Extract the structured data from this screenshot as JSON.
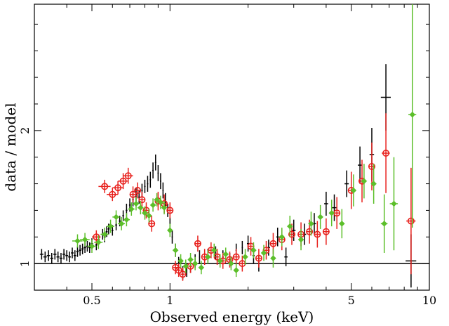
{
  "chart_data": {
    "type": "scatter",
    "title": "",
    "xlabel": "Observed energy (keV)",
    "ylabel": "data / model",
    "x_scale": "log",
    "xlim": [
      0.3,
      10
    ],
    "ylim": [
      0.8,
      2.95
    ],
    "x_ticks": [
      {
        "value": 0.5,
        "label": "0.5"
      },
      {
        "value": 1,
        "label": "1"
      },
      {
        "value": 5,
        "label": "5"
      },
      {
        "value": 10,
        "label": "10"
      }
    ],
    "x_minor_ticks": [
      0.4,
      0.6,
      0.7,
      0.8,
      0.9,
      2,
      3,
      4,
      6,
      7,
      8,
      9
    ],
    "y_ticks": [
      {
        "value": 1,
        "label": "1"
      },
      {
        "value": 2,
        "label": "2"
      }
    ],
    "y_minor_ticks": [
      1.2,
      1.4,
      1.6,
      1.8,
      2.2,
      2.4,
      2.6,
      2.8
    ],
    "reference_line": 1,
    "grid": false,
    "colors": {
      "series1": "#000000",
      "series2": "#e8211d",
      "series3": "#5cbf2a"
    },
    "series": [
      {
        "marker": "cross",
        "color": "#000000",
        "points": [
          [
            0.32,
            1.07,
            0.04,
            0.005
          ],
          [
            0.33,
            1.05,
            0.04,
            0.005
          ],
          [
            0.34,
            1.06,
            0.04,
            0.005
          ],
          [
            0.35,
            1.04,
            0.04,
            0.005
          ],
          [
            0.36,
            1.07,
            0.04,
            0.005
          ],
          [
            0.37,
            1.05,
            0.04,
            0.005
          ],
          [
            0.38,
            1.04,
            0.04,
            0.005
          ],
          [
            0.39,
            1.07,
            0.04,
            0.005
          ],
          [
            0.4,
            1.06,
            0.04,
            0.005
          ],
          [
            0.41,
            1.05,
            0.04,
            0.005
          ],
          [
            0.42,
            1.08,
            0.04,
            0.005
          ],
          [
            0.43,
            1.06,
            0.04,
            0.005
          ],
          [
            0.44,
            1.09,
            0.04,
            0.005
          ],
          [
            0.45,
            1.1,
            0.04,
            0.005
          ],
          [
            0.46,
            1.11,
            0.04,
            0.005
          ],
          [
            0.47,
            1.12,
            0.04,
            0.005
          ],
          [
            0.48,
            1.13,
            0.04,
            0.005
          ],
          [
            0.49,
            1.12,
            0.04,
            0.005
          ],
          [
            0.5,
            1.15,
            0.04,
            0.005
          ],
          [
            0.52,
            1.14,
            0.04,
            0.005
          ],
          [
            0.53,
            1.18,
            0.04,
            0.005
          ],
          [
            0.55,
            1.22,
            0.04,
            0.005
          ],
          [
            0.56,
            1.2,
            0.04,
            0.005
          ],
          [
            0.57,
            1.24,
            0.04,
            0.005
          ],
          [
            0.58,
            1.26,
            0.04,
            0.005
          ],
          [
            0.6,
            1.25,
            0.04,
            0.005
          ],
          [
            0.62,
            1.29,
            0.04,
            0.005
          ],
          [
            0.64,
            1.32,
            0.04,
            0.005
          ],
          [
            0.66,
            1.36,
            0.04,
            0.005
          ],
          [
            0.68,
            1.4,
            0.05,
            0.005
          ],
          [
            0.7,
            1.44,
            0.05,
            0.005
          ],
          [
            0.72,
            1.48,
            0.05,
            0.005
          ],
          [
            0.74,
            1.52,
            0.05,
            0.005
          ],
          [
            0.76,
            1.5,
            0.05,
            0.005
          ],
          [
            0.78,
            1.55,
            0.05,
            0.005
          ],
          [
            0.8,
            1.58,
            0.05,
            0.005
          ],
          [
            0.82,
            1.6,
            0.06,
            0.005
          ],
          [
            0.84,
            1.63,
            0.06,
            0.005
          ],
          [
            0.86,
            1.7,
            0.06,
            0.005
          ],
          [
            0.88,
            1.76,
            0.06,
            0.005
          ],
          [
            0.9,
            1.68,
            0.06,
            0.005
          ],
          [
            0.92,
            1.62,
            0.06,
            0.005
          ],
          [
            0.94,
            1.55,
            0.06,
            0.005
          ],
          [
            0.96,
            1.48,
            0.05,
            0.005
          ],
          [
            0.98,
            1.4,
            0.05,
            0.005
          ],
          [
            1.0,
            1.3,
            0.05,
            0.005
          ],
          [
            1.02,
            1.2,
            0.05,
            0.005
          ],
          [
            1.05,
            1.1,
            0.05,
            0.005
          ],
          [
            1.08,
            1.0,
            0.05,
            0.005
          ],
          [
            1.12,
            0.93,
            0.05,
            0.005
          ],
          [
            1.16,
            0.95,
            0.05,
            0.005
          ],
          [
            1.2,
            0.98,
            0.05,
            0.005
          ],
          [
            1.25,
            1.02,
            0.05,
            0.005
          ],
          [
            1.3,
            1.05,
            0.05,
            0.005
          ],
          [
            1.4,
            1.06,
            0.05,
            0.005
          ],
          [
            1.5,
            1.08,
            0.05,
            0.005
          ],
          [
            1.6,
            1.05,
            0.05,
            0.01
          ],
          [
            1.7,
            1.03,
            0.05,
            0.01
          ],
          [
            1.8,
            1.1,
            0.05,
            0.01
          ],
          [
            1.9,
            1.12,
            0.05,
            0.01
          ],
          [
            2.0,
            1.15,
            0.06,
            0.02
          ],
          [
            2.1,
            1.06,
            0.06,
            0.02
          ],
          [
            2.2,
            1.0,
            0.06,
            0.02
          ],
          [
            2.4,
            1.12,
            0.06,
            0.03
          ],
          [
            2.6,
            1.2,
            0.07,
            0.03
          ],
          [
            2.8,
            1.05,
            0.07,
            0.04
          ],
          [
            3.0,
            1.25,
            0.08,
            0.05
          ],
          [
            3.3,
            1.22,
            0.08,
            0.05
          ],
          [
            3.6,
            1.3,
            0.08,
            0.06
          ],
          [
            4.0,
            1.45,
            0.09,
            0.07
          ],
          [
            4.3,
            1.42,
            0.1,
            0.08
          ],
          [
            4.8,
            1.6,
            0.1,
            0.09
          ],
          [
            5.4,
            1.74,
            0.14,
            0.1
          ],
          [
            6.0,
            1.82,
            0.2,
            0.12
          ],
          [
            6.8,
            2.25,
            0.25,
            0.3
          ],
          [
            8.5,
            1.02,
            0.2,
            0.4
          ]
        ]
      },
      {
        "marker": "circle",
        "color": "#e8211d",
        "points": [
          [
            0.52,
            1.2,
            0.05,
            0.02
          ],
          [
            0.56,
            1.58,
            0.05,
            0.03
          ],
          [
            0.6,
            1.52,
            0.05,
            0.03
          ],
          [
            0.63,
            1.57,
            0.05,
            0.03
          ],
          [
            0.66,
            1.62,
            0.06,
            0.03
          ],
          [
            0.69,
            1.66,
            0.06,
            0.03
          ],
          [
            0.72,
            1.52,
            0.06,
            0.02
          ],
          [
            0.75,
            1.55,
            0.06,
            0.02
          ],
          [
            0.78,
            1.48,
            0.06,
            0.02
          ],
          [
            0.81,
            1.4,
            0.06,
            0.02
          ],
          [
            0.85,
            1.3,
            0.06,
            0.02
          ],
          [
            0.9,
            1.47,
            0.07,
            0.02
          ],
          [
            0.95,
            1.45,
            0.07,
            0.02
          ],
          [
            1.0,
            1.4,
            0.06,
            0.02
          ],
          [
            1.05,
            0.97,
            0.05,
            0.02
          ],
          [
            1.08,
            0.95,
            0.05,
            0.02
          ],
          [
            1.12,
            0.92,
            0.05,
            0.02
          ],
          [
            1.2,
            0.98,
            0.05,
            0.02
          ],
          [
            1.28,
            1.15,
            0.06,
            0.03
          ],
          [
            1.36,
            1.05,
            0.06,
            0.03
          ],
          [
            1.44,
            1.1,
            0.06,
            0.03
          ],
          [
            1.52,
            1.05,
            0.06,
            0.03
          ],
          [
            1.6,
            1.02,
            0.06,
            0.03
          ],
          [
            1.7,
            1.03,
            0.06,
            0.03
          ],
          [
            1.8,
            1.05,
            0.06,
            0.04
          ],
          [
            1.9,
            1.0,
            0.06,
            0.04
          ],
          [
            2.05,
            1.13,
            0.07,
            0.05
          ],
          [
            2.2,
            1.04,
            0.07,
            0.05
          ],
          [
            2.35,
            1.1,
            0.07,
            0.05
          ],
          [
            2.5,
            1.15,
            0.08,
            0.06
          ],
          [
            2.7,
            1.18,
            0.08,
            0.07
          ],
          [
            2.95,
            1.22,
            0.08,
            0.08
          ],
          [
            3.2,
            1.22,
            0.09,
            0.08
          ],
          [
            3.45,
            1.24,
            0.09,
            0.09
          ],
          [
            3.7,
            1.22,
            0.1,
            0.1
          ],
          [
            4.0,
            1.24,
            0.1,
            0.11
          ],
          [
            4.4,
            1.38,
            0.12,
            0.12
          ],
          [
            5.0,
            1.55,
            0.14,
            0.14
          ],
          [
            5.5,
            1.62,
            0.16,
            0.16
          ],
          [
            6.0,
            1.73,
            0.18,
            0.18
          ],
          [
            6.8,
            1.83,
            0.3,
            0.24
          ],
          [
            8.5,
            1.32,
            0.4,
            0.35
          ]
        ]
      },
      {
        "marker": "diamond",
        "color": "#5cbf2a",
        "points": [
          [
            0.44,
            1.17,
            0.05,
            0.02
          ],
          [
            0.47,
            1.18,
            0.05,
            0.02
          ],
          [
            0.5,
            1.13,
            0.05,
            0.02
          ],
          [
            0.53,
            1.16,
            0.05,
            0.02
          ],
          [
            0.56,
            1.22,
            0.05,
            0.02
          ],
          [
            0.59,
            1.28,
            0.05,
            0.02
          ],
          [
            0.62,
            1.35,
            0.05,
            0.02
          ],
          [
            0.65,
            1.3,
            0.05,
            0.02
          ],
          [
            0.68,
            1.33,
            0.05,
            0.02
          ],
          [
            0.71,
            1.41,
            0.05,
            0.02
          ],
          [
            0.74,
            1.45,
            0.05,
            0.02
          ],
          [
            0.77,
            1.42,
            0.05,
            0.02
          ],
          [
            0.8,
            1.38,
            0.05,
            0.02
          ],
          [
            0.83,
            1.36,
            0.05,
            0.02
          ],
          [
            0.86,
            1.44,
            0.05,
            0.02
          ],
          [
            0.89,
            1.48,
            0.05,
            0.02
          ],
          [
            0.92,
            1.46,
            0.05,
            0.02
          ],
          [
            0.95,
            1.42,
            0.05,
            0.02
          ],
          [
            1.0,
            1.25,
            0.05,
            0.02
          ],
          [
            1.05,
            1.1,
            0.05,
            0.02
          ],
          [
            1.1,
            1.02,
            0.05,
            0.02
          ],
          [
            1.15,
            0.98,
            0.05,
            0.02
          ],
          [
            1.2,
            1.03,
            0.05,
            0.02
          ],
          [
            1.25,
            1.0,
            0.05,
            0.02
          ],
          [
            1.32,
            0.97,
            0.05,
            0.02
          ],
          [
            1.4,
            1.05,
            0.05,
            0.02
          ],
          [
            1.48,
            1.1,
            0.05,
            0.02
          ],
          [
            1.56,
            1.02,
            0.05,
            0.02
          ],
          [
            1.64,
            1.07,
            0.05,
            0.03
          ],
          [
            1.72,
            1.0,
            0.05,
            0.03
          ],
          [
            1.8,
            0.95,
            0.05,
            0.03
          ],
          [
            1.95,
            1.05,
            0.06,
            0.04
          ],
          [
            2.1,
            1.1,
            0.06,
            0.04
          ],
          [
            2.3,
            1.08,
            0.06,
            0.04
          ],
          [
            2.5,
            1.04,
            0.07,
            0.05
          ],
          [
            2.7,
            1.2,
            0.07,
            0.05
          ],
          [
            2.9,
            1.28,
            0.08,
            0.05
          ],
          [
            3.2,
            1.18,
            0.08,
            0.06
          ],
          [
            3.5,
            1.3,
            0.09,
            0.06
          ],
          [
            3.8,
            1.35,
            0.09,
            0.07
          ],
          [
            4.2,
            1.38,
            0.1,
            0.08
          ],
          [
            4.6,
            1.3,
            0.11,
            0.09
          ],
          [
            5.1,
            1.55,
            0.12,
            0.1
          ],
          [
            5.6,
            1.62,
            0.13,
            0.12
          ],
          [
            6.1,
            1.6,
            0.15,
            0.14
          ],
          [
            6.7,
            1.3,
            0.22,
            0.2
          ],
          [
            7.3,
            1.45,
            0.35,
            0.26
          ],
          [
            8.6,
            2.12,
            0.85,
            0.3
          ]
        ]
      }
    ]
  }
}
